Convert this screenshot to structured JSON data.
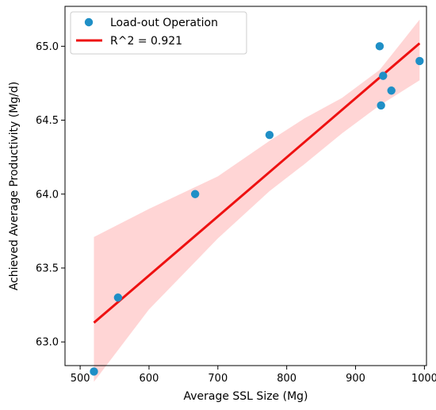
{
  "chart_data": {
    "type": "scatter",
    "xlabel": "Average SSL Size (Mg)",
    "ylabel": "Achieved Average Productivity (Mg/d)",
    "xlim": [
      478,
      1003
    ],
    "ylim": [
      62.84,
      65.27
    ],
    "xticks": [
      "500",
      "600",
      "700",
      "800",
      "900",
      "1000"
    ],
    "yticks": [
      "63.0",
      "63.5",
      "64.0",
      "64.5",
      "65.0"
    ],
    "grid": false,
    "legend_position": "top-left",
    "series": [
      {
        "name": "Load-out Operation",
        "color": "#1f8fc6",
        "points": [
          {
            "x": 520,
            "y": 62.8
          },
          {
            "x": 555,
            "y": 63.3
          },
          {
            "x": 667,
            "y": 64.0
          },
          {
            "x": 775,
            "y": 64.4
          },
          {
            "x": 935,
            "y": 65.0
          },
          {
            "x": 937,
            "y": 64.6
          },
          {
            "x": 940,
            "y": 64.8
          },
          {
            "x": 952,
            "y": 64.7
          },
          {
            "x": 993,
            "y": 64.9
          }
        ]
      }
    ],
    "fit": {
      "name": "R^2 = 0.921",
      "color": "#ee1111",
      "band_color": "#ffb3b3",
      "x": [
        520,
        993
      ],
      "y": [
        63.13,
        65.02
      ],
      "band": [
        {
          "x": 520,
          "lower": 62.73,
          "upper": 63.71
        },
        {
          "x": 600,
          "lower": 63.22,
          "upper": 63.9
        },
        {
          "x": 700,
          "lower": 63.7,
          "upper": 64.12
        },
        {
          "x": 775,
          "lower": 64.02,
          "upper": 64.36
        },
        {
          "x": 825,
          "lower": 64.2,
          "upper": 64.51
        },
        {
          "x": 880,
          "lower": 64.41,
          "upper": 64.65
        },
        {
          "x": 935,
          "lower": 64.6,
          "upper": 64.84
        },
        {
          "x": 993,
          "lower": 64.77,
          "upper": 65.18
        }
      ]
    }
  }
}
